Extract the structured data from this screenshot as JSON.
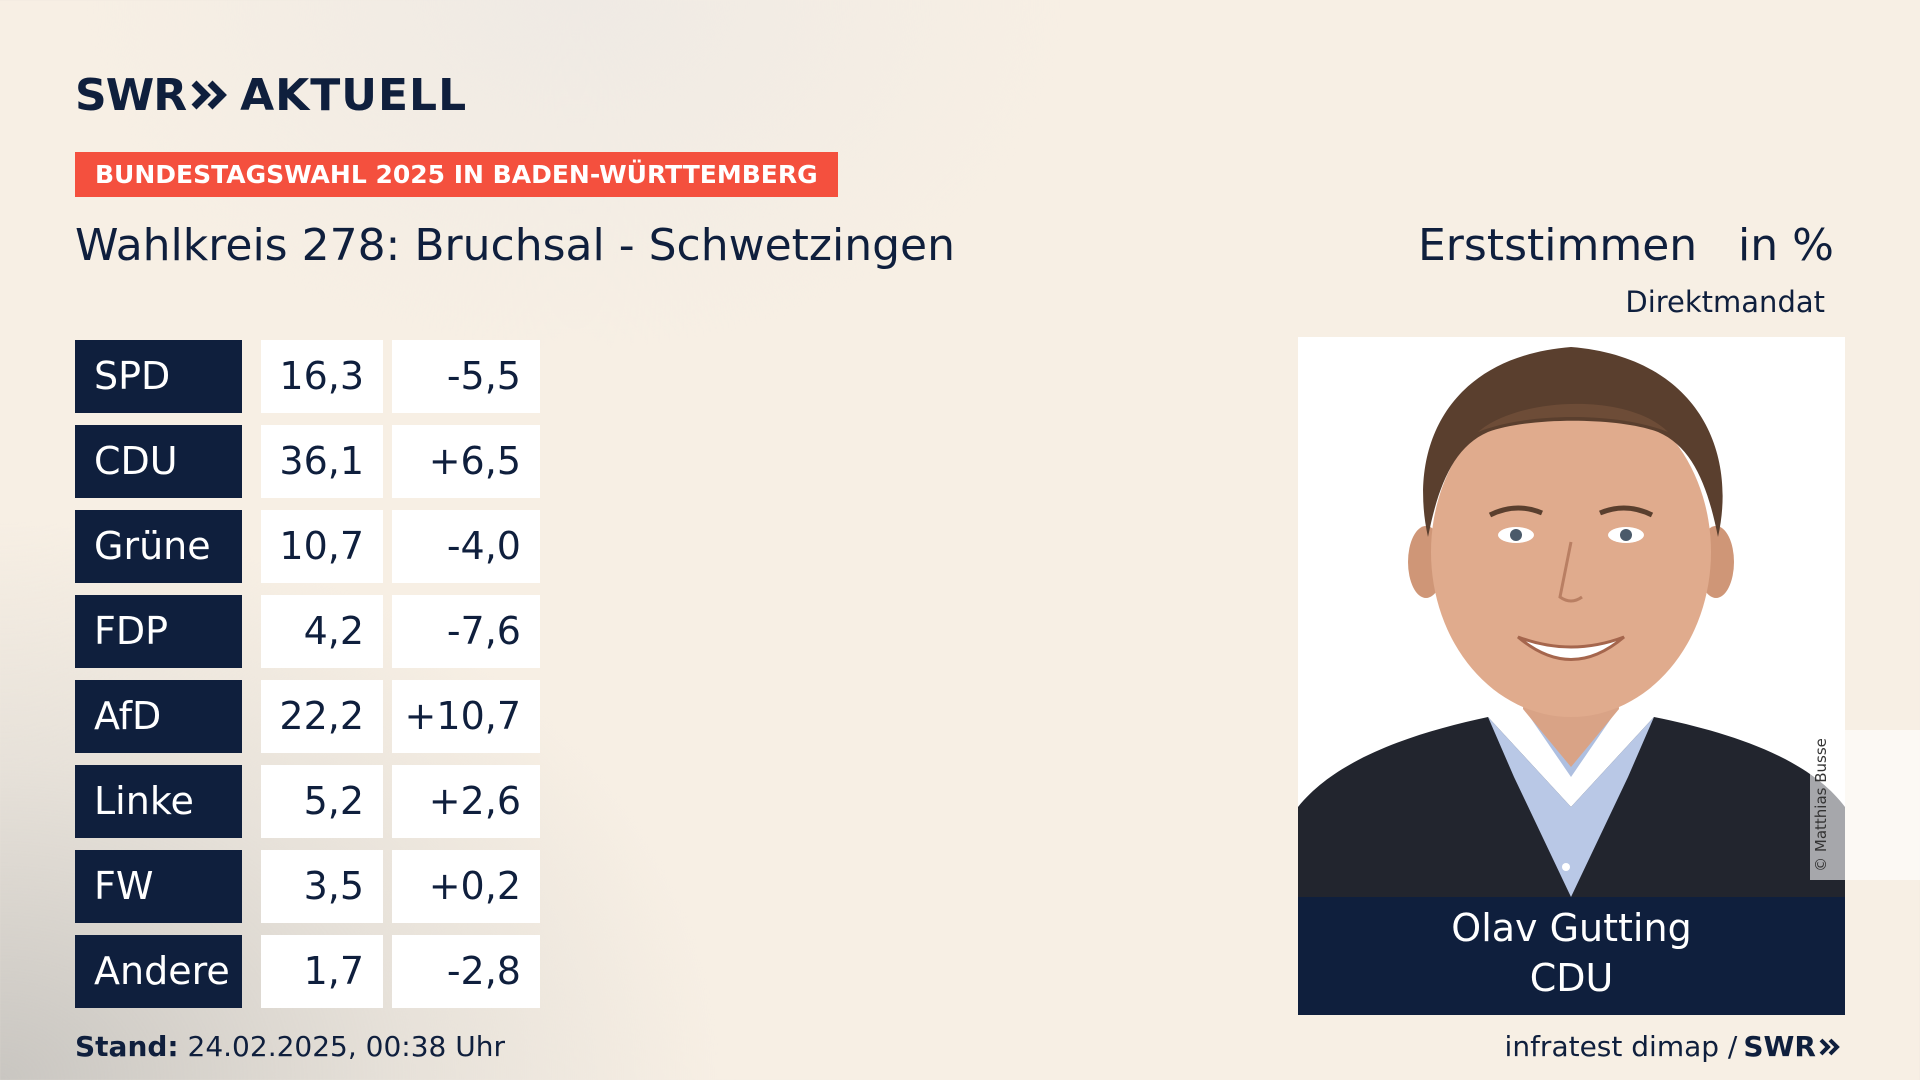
{
  "brand": {
    "name": "SWR",
    "section": "AKTUELL"
  },
  "banner": "BUNDESTAGSWAHL 2025 IN BADEN-WÜRTTEMBERG",
  "title": "Wahlkreis 278: Bruchsal - Schwetzingen",
  "votes_label": "Erststimmen",
  "unit_label": "in %",
  "mandate_label": "Direktmandat",
  "results": [
    {
      "party": "SPD",
      "share": "16,3",
      "diff": "-5,5"
    },
    {
      "party": "CDU",
      "share": "36,1",
      "diff": "+6,5"
    },
    {
      "party": "Grüne",
      "share": "10,7",
      "diff": "-4,0"
    },
    {
      "party": "FDP",
      "share": "4,2",
      "diff": "-7,6"
    },
    {
      "party": "AfD",
      "share": "22,2",
      "diff": "+10,7"
    },
    {
      "party": "Linke",
      "share": "5,2",
      "diff": "+2,6"
    },
    {
      "party": "FW",
      "share": "3,5",
      "diff": "+0,2"
    },
    {
      "party": "Andere",
      "share": "1,7",
      "diff": "-2,8"
    }
  ],
  "candidate": {
    "name": "Olav Gutting",
    "party": "CDU",
    "photo_credit": "© Matthias Busse"
  },
  "footer": {
    "stand_label": "Stand:",
    "stand_value": "24.02.2025, 00:38 Uhr",
    "source": "infratest dimap /",
    "source_brand": "SWR"
  },
  "colors": {
    "navy": "#0f1f3d",
    "banner_red": "#f4503e",
    "background": "#f7efe4",
    "cell_white": "#ffffff"
  }
}
